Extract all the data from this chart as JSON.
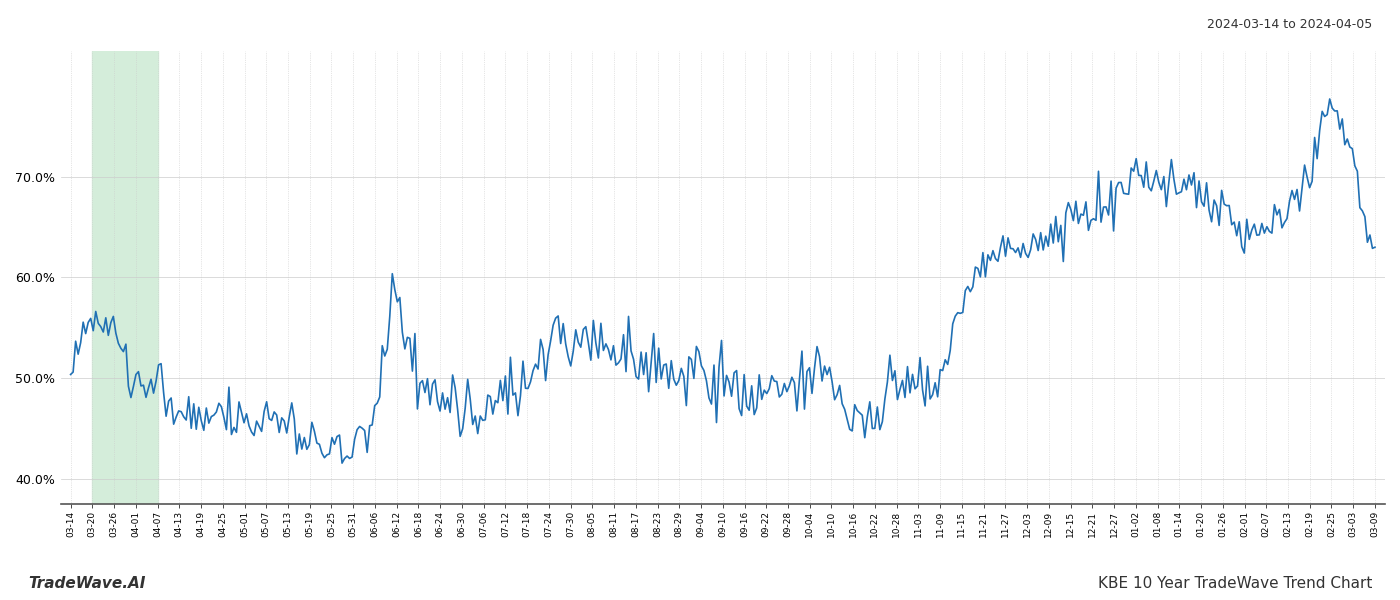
{
  "title_top_right": "2024-03-14 to 2024-04-05",
  "title_bottom_left": "TradeWave.AI",
  "title_bottom_right": "KBE 10 Year TradeWave Trend Chart",
  "line_color": "#2070b4",
  "background_color": "#ffffff",
  "highlight_color": "#d4edda",
  "ylim": [
    0.375,
    0.825
  ],
  "yticks": [
    0.4,
    0.5,
    0.6,
    0.7
  ],
  "x_labels": [
    "03-14",
    "03-20",
    "03-26",
    "04-01",
    "04-07",
    "04-13",
    "04-19",
    "04-25",
    "05-01",
    "05-07",
    "05-13",
    "05-19",
    "05-25",
    "05-31",
    "06-06",
    "06-12",
    "06-18",
    "06-24",
    "06-30",
    "07-06",
    "07-12",
    "07-18",
    "07-24",
    "07-30",
    "08-05",
    "08-11",
    "08-17",
    "08-23",
    "08-29",
    "09-04",
    "09-10",
    "09-16",
    "09-22",
    "09-28",
    "10-04",
    "10-10",
    "10-16",
    "10-22",
    "10-28",
    "11-03",
    "11-09",
    "11-15",
    "11-21",
    "11-27",
    "12-03",
    "12-09",
    "12-15",
    "12-21",
    "12-27",
    "01-02",
    "01-08",
    "01-14",
    "01-20",
    "01-26",
    "02-01",
    "02-07",
    "02-13",
    "02-19",
    "02-25",
    "03-03",
    "03-09"
  ],
  "highlight_label_start": "03-20",
  "highlight_label_end": "04-07"
}
